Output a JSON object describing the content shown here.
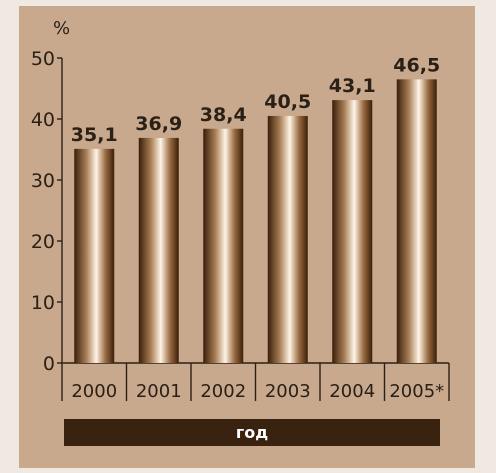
{
  "chart_data": {
    "type": "bar",
    "categories": [
      "2000",
      "2001",
      "2002",
      "2003",
      "2004",
      "2005*"
    ],
    "values": [
      35.1,
      36.9,
      38.4,
      40.5,
      43.1,
      46.5
    ],
    "data_labels": [
      "35,1",
      "36,9",
      "38,4",
      "40,5",
      "43,1",
      "46,5"
    ],
    "y_unit": "%",
    "xlabel": "год",
    "ylim": [
      0,
      50
    ],
    "y_ticks": [
      0,
      10,
      20,
      30,
      40,
      50
    ],
    "grid": false,
    "colors": {
      "panel": "#c8a98d",
      "background": "#efe9e2",
      "bar_dark": "#3a1e0a",
      "bar_light": "#fff4e6",
      "axis": "#2b2016",
      "xlabel_bar": "#3a2210"
    }
  }
}
